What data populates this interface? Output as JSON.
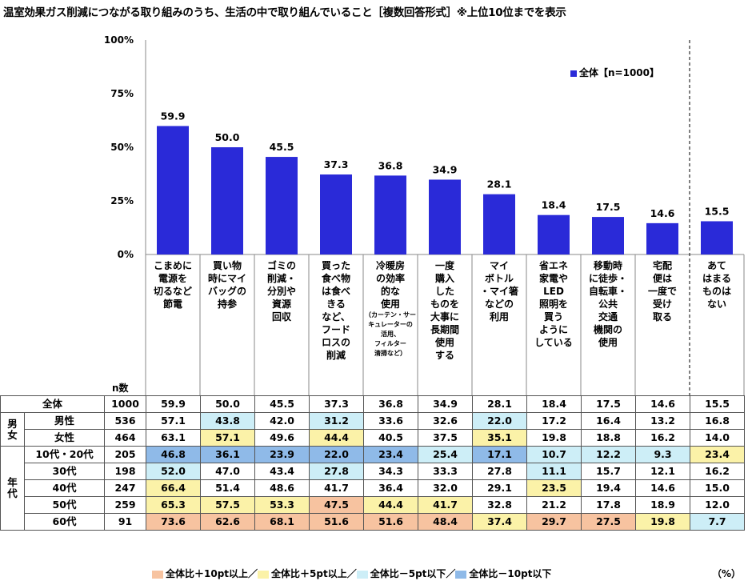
{
  "title": "温室効果ガス削減につながる取り組みのうち、生活の中で取り組んでいること［複数回答形式］※上位10位までを表示",
  "legend_label": "全体【n=1000】",
  "n_header": "n数",
  "unit": "（%）",
  "colors": {
    "bar": "#2a2ad8",
    "p10": "#f7c3a0",
    "p5": "#fbf2a8",
    "m5": "#cdeef7",
    "m10": "#8fbae8"
  },
  "chart_data": {
    "type": "bar",
    "categories": [
      "こまめに\n電源を\n切るなど\n節電",
      "買い物\n時にマイ\nバッグの\n持参",
      "ゴミの\n削減・\n分別や\n資源\n回収",
      "買った\n食べ物\nは食べ\nきる\nなど、\nフード\nロスの\n削減",
      "冷暖房\nの効率\n的な\n使用",
      "一度\n購入\nした\nものを\n大事に\n長期間\n使用\nする",
      "マイ\nボトル\n・マイ箸\nなどの\n利用",
      "省エネ\n家電や\nLED\n照明を\n買う\nように\nしている",
      "移動時\nに徒歩・\n自転車・\n公共\n交通\n機関の\n使用",
      "宅配\n便は\n一度で\n受け\n取る",
      "あて\nはまる\nものは\nない"
    ],
    "category_note": {
      "index": 4,
      "text": "（カーテン・サー\nキュレーターの\n活用、\nフィルター\n清掃など）"
    },
    "series": [
      {
        "name": "全体【n=1000】",
        "values": [
          59.9,
          50.0,
          45.5,
          37.3,
          36.8,
          34.9,
          28.1,
          18.4,
          17.5,
          14.6,
          15.5
        ]
      }
    ],
    "ylim": [
      0,
      100
    ],
    "yticks": [
      "0%",
      "25%",
      "50%",
      "75%",
      "100%"
    ],
    "ytick_values": [
      0,
      25,
      50,
      75,
      100
    ]
  },
  "table": {
    "rows": [
      {
        "group": "",
        "label": "全体",
        "n": "1000",
        "values": [
          "59.9",
          "50.0",
          "45.5",
          "37.3",
          "36.8",
          "34.9",
          "28.1",
          "18.4",
          "17.5",
          "14.6",
          "15.5"
        ],
        "cls": [
          "",
          "",
          "",
          "",
          "",
          "",
          "",
          "",
          "",
          "",
          ""
        ]
      },
      {
        "group": "男女",
        "label": "男性",
        "n": "536",
        "values": [
          "57.1",
          "43.8",
          "42.0",
          "31.2",
          "33.6",
          "32.6",
          "22.0",
          "17.2",
          "16.4",
          "13.2",
          "16.8"
        ],
        "cls": [
          "",
          "m5",
          "",
          "m5",
          "",
          "",
          "m5",
          "",
          "",
          "",
          ""
        ]
      },
      {
        "group": "",
        "label": "女性",
        "n": "464",
        "values": [
          "63.1",
          "57.1",
          "49.6",
          "44.4",
          "40.5",
          "37.5",
          "35.1",
          "19.8",
          "18.8",
          "16.2",
          "14.0"
        ],
        "cls": [
          "",
          "p5",
          "",
          "p5",
          "",
          "",
          "p5",
          "",
          "",
          "",
          ""
        ]
      },
      {
        "group": "年代",
        "label": "10代・20代",
        "n": "205",
        "values": [
          "46.8",
          "36.1",
          "23.9",
          "22.0",
          "23.4",
          "25.4",
          "17.1",
          "10.7",
          "12.2",
          "9.3",
          "23.4"
        ],
        "cls": [
          "m10",
          "m10",
          "m10",
          "m10",
          "m10",
          "m5",
          "m10",
          "m5",
          "m5",
          "m5",
          "p5"
        ]
      },
      {
        "group": "",
        "label": "30代",
        "n": "198",
        "values": [
          "52.0",
          "47.0",
          "43.4",
          "27.8",
          "34.3",
          "33.3",
          "27.8",
          "11.1",
          "15.7",
          "12.1",
          "16.2"
        ],
        "cls": [
          "m5",
          "",
          "",
          "m5",
          "",
          "",
          "",
          "m5",
          "",
          "",
          ""
        ]
      },
      {
        "group": "",
        "label": "40代",
        "n": "247",
        "values": [
          "66.4",
          "51.4",
          "48.6",
          "41.7",
          "36.4",
          "32.0",
          "29.1",
          "23.5",
          "19.4",
          "14.6",
          "15.0"
        ],
        "cls": [
          "p5",
          "",
          "",
          "",
          "",
          "",
          "",
          "p5",
          "",
          "",
          ""
        ]
      },
      {
        "group": "",
        "label": "50代",
        "n": "259",
        "values": [
          "65.3",
          "57.5",
          "53.3",
          "47.5",
          "44.4",
          "41.7",
          "32.8",
          "21.2",
          "17.8",
          "18.9",
          "12.0"
        ],
        "cls": [
          "p5",
          "p5",
          "p5",
          "p10",
          "p5",
          "p5",
          "",
          "",
          "",
          "",
          ""
        ]
      },
      {
        "group": "",
        "label": "60代",
        "n": "91",
        "values": [
          "73.6",
          "62.6",
          "68.1",
          "51.6",
          "51.6",
          "48.4",
          "37.4",
          "29.7",
          "27.5",
          "19.8",
          "7.7"
        ],
        "cls": [
          "p10",
          "p10",
          "p10",
          "p10",
          "p10",
          "p10",
          "p5",
          "p10",
          "p10",
          "p5",
          "m5"
        ]
      }
    ]
  },
  "bottom_legend": [
    "全体比＋10pt以上／",
    "全体比＋5pt以上／",
    "全体比－5pt以下／",
    "全体比－10pt以下"
  ]
}
